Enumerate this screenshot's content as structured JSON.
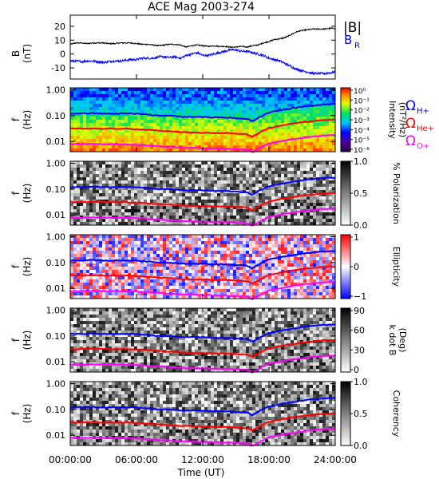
{
  "chart_data": {
    "type": "multi-panel time series / spectrogram",
    "title": "ACE Mag 2003-274",
    "xlabel": "Time (UT)",
    "x_ticks": [
      "00:00:00",
      "06:00:00",
      "12:00:00",
      "18:00:00",
      "24:00:00"
    ],
    "x_range_hours": [
      0,
      24
    ],
    "panels": [
      {
        "id": "b-field",
        "type": "line",
        "ylabel": "B",
        "yunit": "(nT)",
        "ylim": [
          -18,
          28
        ],
        "y_ticks": [
          "20",
          "10",
          "0",
          "-10"
        ],
        "legend": [
          "|B|",
          "B_R"
        ],
        "series": [
          {
            "name": "|B|",
            "color": "#000000",
            "x": [
              0,
              0.5,
              1,
              1.5,
              2,
              2.5,
              3,
              3.5,
              4,
              4.5,
              5,
              5.5,
              6,
              6.5,
              7,
              7.5,
              8,
              8.5,
              9,
              9.5,
              10,
              10.5,
              11,
              11.5,
              12,
              12.5,
              13,
              13.5,
              14,
              14.5,
              15,
              15.5,
              16,
              16.5,
              17,
              17.5,
              18,
              18.5,
              19,
              19.5,
              20,
              20.5,
              21,
              21.5,
              22,
              22.5,
              23,
              23.5,
              24
            ],
            "y": [
              7,
              8,
              8,
              7.5,
              8,
              8,
              8,
              7.5,
              7.5,
              8,
              8,
              8,
              7.5,
              7,
              7,
              6.5,
              6,
              6.5,
              7,
              7,
              6.5,
              5,
              6,
              6.5,
              6,
              5.5,
              6,
              5.5,
              5.5,
              5,
              5,
              5.5,
              5,
              6,
              6.5,
              8,
              9,
              10.5,
              11,
              12,
              14,
              16,
              17,
              17.5,
              18,
              18,
              18,
              18.5,
              18.5
            ]
          },
          {
            "name": "B_R",
            "color": "#0000ff",
            "x": [
              0,
              0.5,
              1,
              1.5,
              2,
              2.5,
              3,
              3.5,
              4,
              4.5,
              5,
              5.5,
              6,
              6.5,
              7,
              7.5,
              8,
              8.5,
              9,
              9.5,
              10,
              10.5,
              11,
              11.5,
              12,
              12.5,
              13,
              13.5,
              14,
              14.5,
              15,
              15.5,
              16,
              16.5,
              17,
              17.5,
              18,
              18.5,
              19,
              19.5,
              20,
              20.5,
              21,
              21.5,
              22,
              22.5,
              23,
              23.5,
              24
            ],
            "y": [
              -5,
              -5,
              -5.5,
              -5,
              -5,
              -5.5,
              -6,
              -5.5,
              -5,
              -5,
              -4.5,
              -4,
              -4,
              -3,
              -3,
              -3,
              -2,
              -2,
              -2.5,
              -2,
              -3,
              -1,
              0,
              1,
              -1,
              -1,
              0,
              1,
              2,
              3,
              3,
              2,
              2,
              1,
              0,
              -1,
              -3,
              -4,
              -5,
              -7,
              -9,
              -11,
              -12,
              -13,
              -14,
              -14,
              -14,
              -13.5,
              -13
            ]
          }
        ]
      },
      {
        "id": "intensity",
        "type": "heatmap",
        "ylabel": "f",
        "yunit": "(Hz)",
        "scale": "log",
        "ylim": [
          0.004,
          1.2
        ],
        "y_ticks": [
          "1.00",
          "0.10",
          "0.01"
        ],
        "colorbar": {
          "label": "Intensity",
          "unit": "(nT²/Hz)",
          "ticks": [
            "10⁰",
            "10⁻¹",
            "10⁻²",
            "10⁻³",
            "10⁻⁴",
            "10⁻⁵",
            "10⁻⁶"
          ],
          "palette": "rainbow"
        },
        "legend": [
          "Ω_H+",
          "Ω_He+",
          "Ω_O+"
        ]
      },
      {
        "id": "polarization",
        "type": "heatmap",
        "ylabel": "f",
        "yunit": "(Hz)",
        "scale": "log",
        "ylim": [
          0.004,
          1.2
        ],
        "y_ticks": [
          "1.00",
          "0.10",
          "0.01"
        ],
        "colorbar": {
          "label": "% Polarization",
          "ticks": [
            "1.0",
            "0.5",
            "0.0"
          ],
          "palette": "gray"
        }
      },
      {
        "id": "ellipticity",
        "type": "heatmap",
        "ylabel": "f",
        "yunit": "(Hz)",
        "scale": "log",
        "ylim": [
          0.004,
          1.2
        ],
        "y_ticks": [
          "1.00",
          "0.10",
          "0.01"
        ],
        "colorbar": {
          "label": "Ellipticity",
          "ticks": [
            "1",
            "0",
            "−1"
          ],
          "palette": "blue-white-red"
        }
      },
      {
        "id": "kdotb",
        "type": "heatmap",
        "ylabel": "f",
        "yunit": "(Hz)",
        "scale": "log",
        "ylim": [
          0.004,
          1.2
        ],
        "y_ticks": [
          "1.00",
          "0.10",
          "0.01"
        ],
        "colorbar": {
          "label": "k dot B",
          "unit": "(Deg)",
          "ticks": [
            "90",
            "60",
            "30",
            "0"
          ],
          "palette": "gray"
        }
      },
      {
        "id": "coherency",
        "type": "heatmap",
        "ylabel": "f",
        "yunit": "(Hz)",
        "scale": "log",
        "ylim": [
          0.004,
          1.2
        ],
        "y_ticks": [
          "1.00",
          "0.10",
          "0.01"
        ],
        "colorbar": {
          "label": "Coherency",
          "ticks": [
            "1.0",
            "0.5",
            "0.0"
          ],
          "palette": "gray"
        }
      }
    ],
    "gyrofrequency_curves": [
      {
        "name": "Ω_H+",
        "color": "#0000ff",
        "x": [
          0,
          1,
          2,
          3,
          4,
          5,
          6,
          7,
          8,
          9,
          10,
          11,
          12,
          13,
          14,
          15,
          16,
          16.5,
          17,
          18,
          19,
          20,
          21,
          22,
          23,
          24
        ],
        "f": [
          0.12,
          0.12,
          0.125,
          0.12,
          0.12,
          0.12,
          0.12,
          0.11,
          0.1,
          0.1,
          0.09,
          0.09,
          0.09,
          0.085,
          0.085,
          0.08,
          0.075,
          0.06,
          0.08,
          0.13,
          0.16,
          0.19,
          0.22,
          0.25,
          0.27,
          0.28
        ]
      },
      {
        "name": "Ω_He+",
        "color": "#ff0000",
        "x": [
          0,
          1,
          2,
          3,
          4,
          5,
          6,
          7,
          8,
          9,
          10,
          11,
          12,
          13,
          14,
          15,
          16,
          16.5,
          17,
          18,
          19,
          20,
          21,
          22,
          23,
          24
        ],
        "f": [
          0.031,
          0.031,
          0.032,
          0.031,
          0.031,
          0.031,
          0.03,
          0.028,
          0.026,
          0.025,
          0.023,
          0.022,
          0.022,
          0.021,
          0.021,
          0.02,
          0.019,
          0.015,
          0.02,
          0.033,
          0.04,
          0.048,
          0.055,
          0.062,
          0.068,
          0.07
        ]
      },
      {
        "name": "Ω_O+",
        "color": "#ff00ff",
        "x": [
          0,
          1,
          2,
          3,
          4,
          5,
          6,
          7,
          8,
          9,
          10,
          11,
          12,
          13,
          14,
          15,
          16,
          16.5,
          17,
          18,
          19,
          20,
          21,
          22,
          23,
          24
        ],
        "f": [
          0.0078,
          0.0078,
          0.008,
          0.0078,
          0.0078,
          0.0077,
          0.0075,
          0.007,
          0.0065,
          0.0062,
          0.0058,
          0.0056,
          0.0055,
          0.0053,
          0.0053,
          0.005,
          0.0048,
          0.0038,
          0.005,
          0.0083,
          0.01,
          0.012,
          0.014,
          0.0155,
          0.017,
          0.0175
        ]
      }
    ]
  }
}
